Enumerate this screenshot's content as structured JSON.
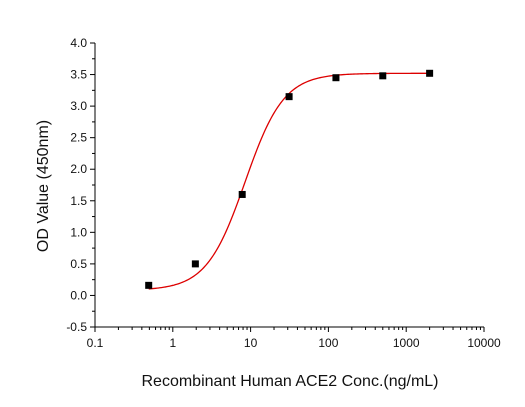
{
  "chart_data": {
    "type": "scatter",
    "xlabel": "Recombinant Human ACE2 Conc.(ng/mL)",
    "ylabel": "OD Value (450nm)",
    "x_scale": "log",
    "xlim": [
      0.1,
      10000
    ],
    "ylim": [
      -0.5,
      4.0
    ],
    "x_ticks": [
      0.1,
      1,
      10,
      100,
      1000,
      10000
    ],
    "x_tick_labels": [
      "0.1",
      "1",
      "10",
      "100",
      "1000",
      "10000"
    ],
    "y_ticks": [
      -0.5,
      0.0,
      0.5,
      1.0,
      1.5,
      2.0,
      2.5,
      3.0,
      3.5,
      4.0
    ],
    "y_tick_labels": [
      "-0.5",
      "0.0",
      "0.5",
      "1.0",
      "1.5",
      "2.0",
      "2.5",
      "3.0",
      "3.5",
      "4.0"
    ],
    "grid": false,
    "series": [
      {
        "type": "scatter",
        "marker": "square",
        "color": "#000000",
        "x": [
          0.49,
          1.95,
          7.8,
          31.25,
          125,
          500,
          2000
        ],
        "y": [
          0.16,
          0.5,
          1.6,
          3.15,
          3.45,
          3.48,
          3.52
        ]
      },
      {
        "type": "line",
        "fit": "four-parameter logistic",
        "color": "#dd0000",
        "x_range": [
          0.49,
          2000
        ],
        "params": {
          "bottom": 0.08,
          "top": 3.52,
          "ec50": 8.5,
          "hill": 1.75
        }
      }
    ]
  }
}
